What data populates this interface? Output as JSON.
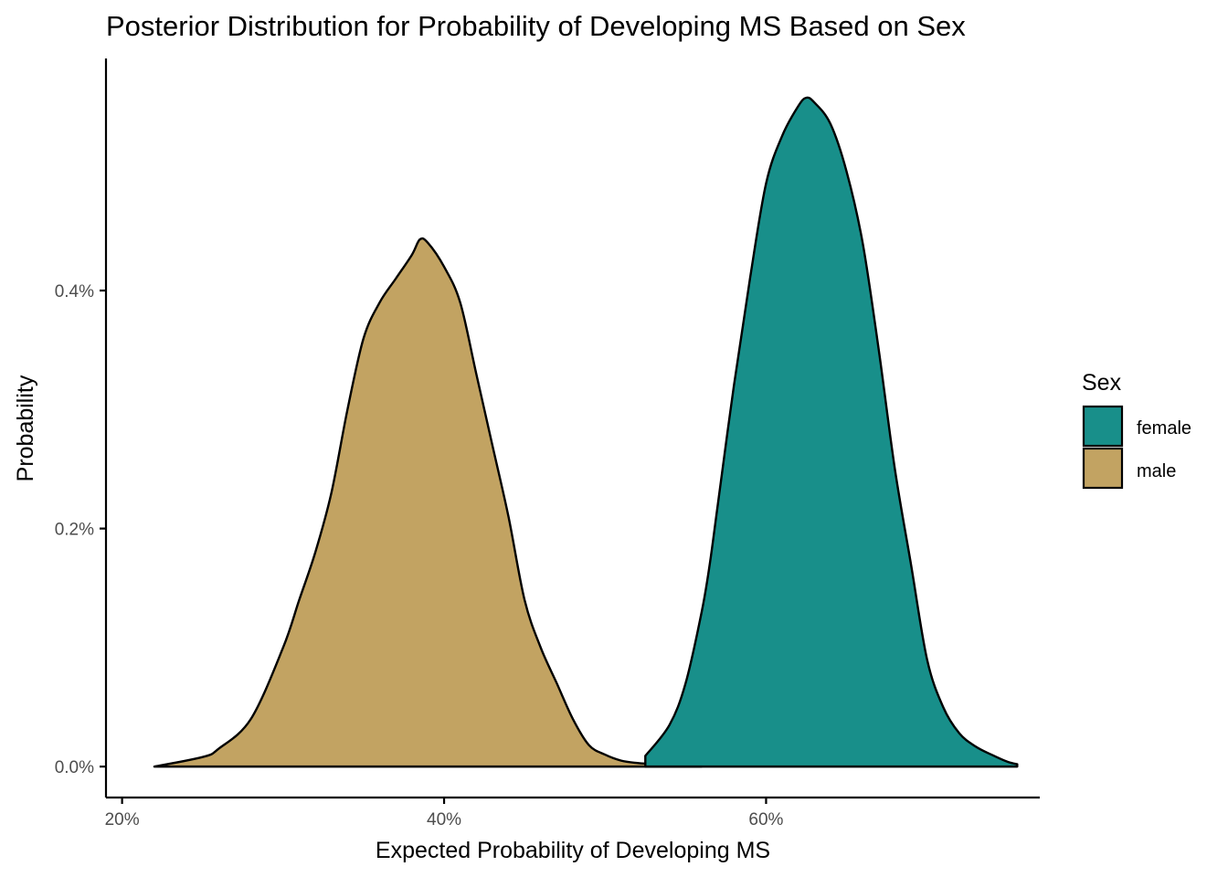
{
  "chart_data": {
    "type": "area",
    "title": "Posterior Distribution for Probability of Developing MS Based on Sex",
    "xlabel": "Expected Probability of Developing MS",
    "ylabel": "Probability",
    "xlim": [
      0.19,
      0.77
    ],
    "ylim": [
      -0.00026,
      0.00595
    ],
    "x_ticks": [
      {
        "value": 0.2,
        "label": "20%"
      },
      {
        "value": 0.4,
        "label": "40%"
      },
      {
        "value": 0.6,
        "label": "60%"
      }
    ],
    "y_ticks": [
      {
        "value": 0.0,
        "label": "0.0%"
      },
      {
        "value": 0.002,
        "label": "0.2%"
      },
      {
        "value": 0.004,
        "label": "0.4%"
      }
    ],
    "grid": false,
    "legend": {
      "title": "Sex",
      "position": "right",
      "entries": [
        "female",
        "male"
      ]
    },
    "series": [
      {
        "name": "female",
        "color": "#188F8A",
        "x": [
          0.525,
          0.54,
          0.55,
          0.56,
          0.565,
          0.57,
          0.58,
          0.59,
          0.6,
          0.61,
          0.62,
          0.625,
          0.63,
          0.64,
          0.65,
          0.66,
          0.67,
          0.68,
          0.69,
          0.7,
          0.71,
          0.72,
          0.73,
          0.74,
          0.75,
          0.756
        ],
        "values": [
          9e-05,
          0.00035,
          0.0007,
          0.0013,
          0.0017,
          0.0022,
          0.0032,
          0.0041,
          0.0049,
          0.0053,
          0.00555,
          0.00562,
          0.00558,
          0.0054,
          0.005,
          0.0044,
          0.0035,
          0.0025,
          0.0017,
          0.0009,
          0.0005,
          0.00028,
          0.00017,
          0.0001,
          4e-05,
          2e-05
        ]
      },
      {
        "name": "male",
        "color": "#C2A362",
        "x": [
          0.22,
          0.25,
          0.26,
          0.28,
          0.3,
          0.31,
          0.32,
          0.33,
          0.34,
          0.35,
          0.36,
          0.37,
          0.38,
          0.385,
          0.39,
          0.4,
          0.41,
          0.42,
          0.43,
          0.44,
          0.45,
          0.46,
          0.47,
          0.48,
          0.49,
          0.5,
          0.51,
          0.52,
          0.53,
          0.54,
          0.55,
          0.56
        ],
        "values": [
          0.0,
          8e-05,
          0.00015,
          0.0004,
          0.001,
          0.0014,
          0.0018,
          0.0023,
          0.003,
          0.0036,
          0.0039,
          0.0041,
          0.0043,
          0.00443,
          0.0044,
          0.0042,
          0.0039,
          0.0033,
          0.0027,
          0.0021,
          0.0014,
          0.001,
          0.0007,
          0.0004,
          0.00018,
          0.0001,
          5e-05,
          3e-05,
          2e-05,
          1e-05,
          5e-06,
          0.0
        ]
      }
    ]
  }
}
